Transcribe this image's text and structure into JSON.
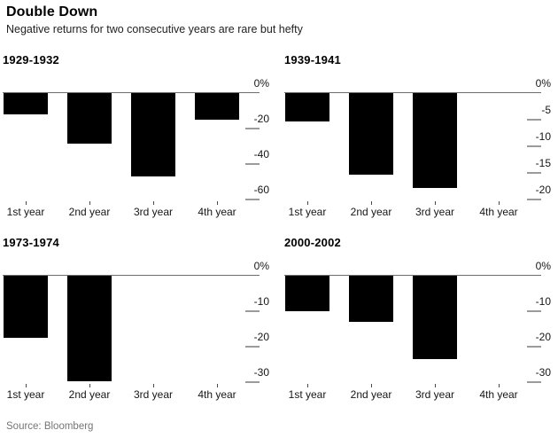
{
  "header": {
    "title": "Double Down",
    "subtitle": "Negative returns for two consecutive years are rare but hefty"
  },
  "footer": {
    "source": "Source: Bloomberg"
  },
  "colors": {
    "bar": "#000000",
    "zero_line": "#6d6d6d",
    "tick_dash": "#9b9b9b",
    "axis_text": "#161616",
    "source_text": "#757575"
  },
  "chart_data": [
    {
      "type": "bar",
      "title": "1929-1932",
      "categories": [
        "1st year",
        "2nd year",
        "3rd year",
        "4th year"
      ],
      "values": [
        -11.9,
        -28.5,
        -47.1,
        -15.1
      ],
      "ylim": [
        -60,
        0
      ],
      "yticks": [
        0,
        -20,
        -40,
        -60
      ],
      "ytick_labels": [
        "0%",
        "-20",
        "-40",
        "-60"
      ],
      "xlabel": "",
      "ylabel": "",
      "grid": false,
      "legend": "none",
      "axis_side": "right"
    },
    {
      "type": "bar",
      "title": "1939-1941",
      "categories": [
        "1st year",
        "2nd year",
        "3rd year",
        "4th year"
      ],
      "values": [
        -5.4,
        -15.3,
        -17.9,
        null
      ],
      "ylim": [
        -20,
        0
      ],
      "yticks": [
        0,
        -5,
        -10,
        -15,
        -20
      ],
      "ytick_labels": [
        "0%",
        "-5",
        "-10",
        "-15",
        "-20"
      ],
      "xlabel": "",
      "ylabel": "",
      "grid": false,
      "legend": "none",
      "axis_side": "right"
    },
    {
      "type": "bar",
      "title": "1973-1974",
      "categories": [
        "1st year",
        "2nd year",
        "3rd year",
        "4th year"
      ],
      "values": [
        -17.4,
        -29.7,
        null,
        null
      ],
      "ylim": [
        -30,
        0
      ],
      "yticks": [
        0,
        -10,
        -20,
        -30
      ],
      "ytick_labels": [
        "0%",
        "-10",
        "-20",
        "-30"
      ],
      "xlabel": "",
      "ylabel": "",
      "grid": false,
      "legend": "none",
      "axis_side": "right"
    },
    {
      "type": "bar",
      "title": "2000-2002",
      "categories": [
        "1st year",
        "2nd year",
        "3rd year",
        "4th year"
      ],
      "values": [
        -10.1,
        -13.0,
        -23.4,
        null
      ],
      "ylim": [
        -30,
        0
      ],
      "yticks": [
        0,
        -10,
        -20,
        -30
      ],
      "ytick_labels": [
        "0%",
        "-10",
        "-20",
        "-30"
      ],
      "xlabel": "",
      "ylabel": "",
      "grid": false,
      "legend": "none",
      "axis_side": "right"
    }
  ]
}
